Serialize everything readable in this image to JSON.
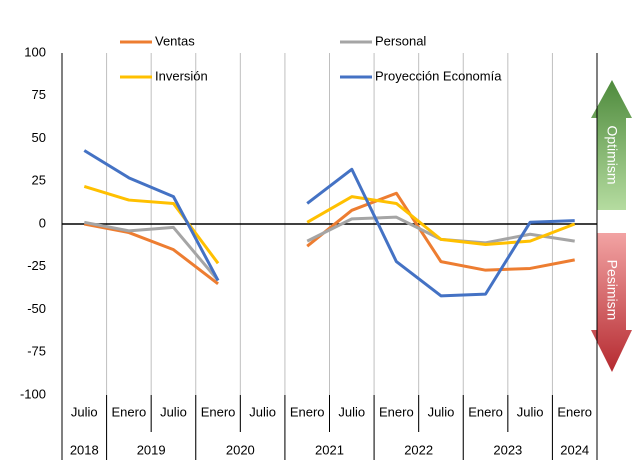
{
  "chart_data": {
    "type": "line",
    "categories": [
      "Julio",
      "Enero",
      "Julio",
      "Enero",
      "Julio",
      "Enero",
      "Julio",
      "Enero",
      "Julio",
      "Enero",
      "Julio",
      "Enero"
    ],
    "category_years": [
      "2018",
      "2019",
      null,
      "2020",
      null,
      "2021",
      null,
      "2022",
      null,
      "2023",
      null,
      "2024"
    ],
    "series": [
      {
        "name": "Ventas",
        "color": "#ed7d31",
        "values": [
          0,
          -5,
          -15,
          -35,
          null,
          -13,
          8,
          18,
          -22,
          -27,
          -26,
          -21
        ]
      },
      {
        "name": "Personal",
        "color": "#a5a5a5",
        "values": [
          1,
          -4,
          -2,
          -33,
          null,
          -10,
          3,
          4,
          -9,
          -11,
          -6,
          -10
        ]
      },
      {
        "name": "Inversión",
        "color": "#ffc000",
        "values": [
          22,
          14,
          12,
          -23,
          null,
          1,
          16,
          12,
          -9,
          -12,
          -10,
          0
        ]
      },
      {
        "name": "Proyección Economía",
        "color": "#4472c4",
        "values": [
          43,
          27,
          16,
          -33,
          null,
          12,
          32,
          -22,
          -42,
          -41,
          1,
          2
        ]
      }
    ],
    "ylim": [
      -100,
      100
    ],
    "yticks": [
      -100,
      -75,
      -50,
      -25,
      0,
      25,
      50,
      75,
      100
    ],
    "legend": "top",
    "annotations": [
      "Optimism",
      "Pesimism"
    ]
  }
}
